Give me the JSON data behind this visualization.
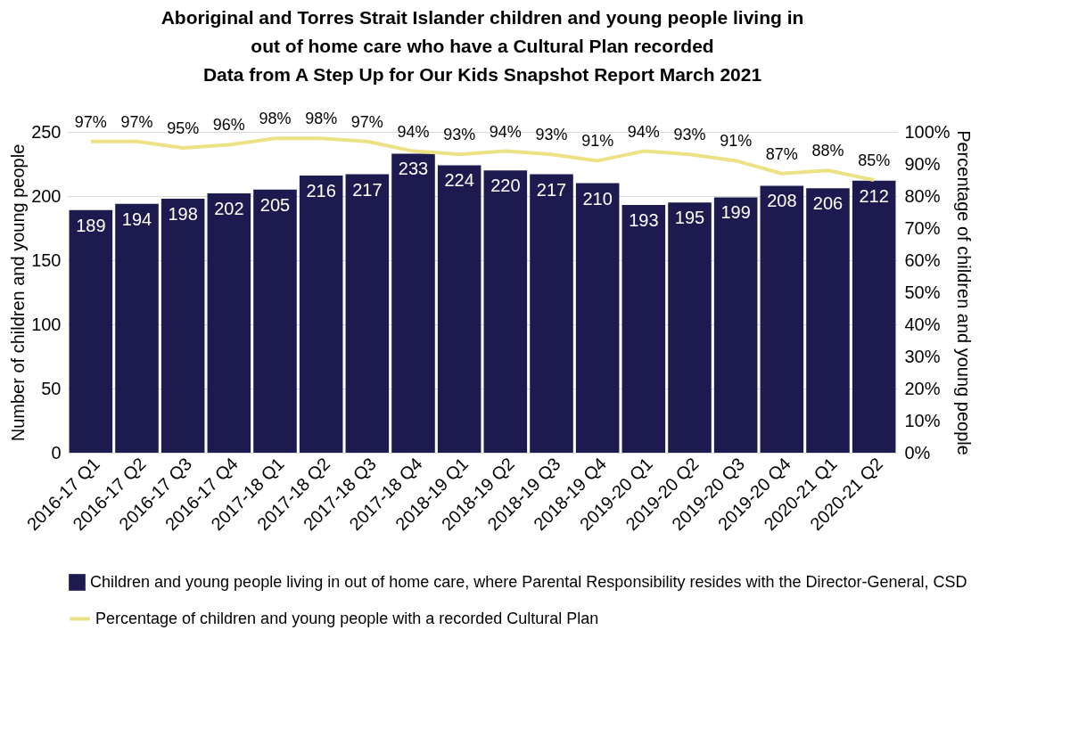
{
  "chart_data": {
    "type": "bar",
    "title": "Aboriginal and Torres Strait Islander children and young people living in out of home care who have a Cultural Plan recorded",
    "subtitle": "Data from A Step Up for Our Kids Snapshot Report March 2021",
    "ylabel": "Number of children and young people",
    "y2label": "Percentage of children and young people",
    "categories": [
      "2016-17 Q1",
      "2016-17 Q2",
      "2016-17 Q3",
      "2016-17 Q4",
      "2017-18 Q1",
      "2017-18 Q2",
      "2017-18 Q3",
      "2017-18 Q4",
      "2018-19 Q1",
      "2018-19 Q2",
      "2018-19 Q3",
      "2018-19 Q4",
      "2019-20 Q1",
      "2019-20 Q2",
      "2019-20 Q3",
      "2019-20 Q4",
      "2020-21 Q1",
      "2020-21 Q2"
    ],
    "series": [
      {
        "name": "Children and young people living in out of home care, where Parental Responsibility resides with the Director-General, CSD",
        "color": "#1c1a4e",
        "values": [
          189,
          194,
          198,
          202,
          205,
          216,
          217,
          233,
          224,
          220,
          217,
          210,
          193,
          195,
          199,
          208,
          206,
          212
        ],
        "value_labels": [
          "189",
          "194",
          "198",
          "202",
          "205",
          "216",
          "217",
          "233",
          "224",
          "220",
          "217",
          "210",
          "193",
          "195",
          "199",
          "208",
          "206",
          "212"
        ]
      },
      {
        "name": "Percentage of children and young people with a recorded Cultural Plan",
        "type": "line",
        "axis": "y2",
        "color": "#ece184",
        "values": [
          97,
          97,
          95,
          96,
          98,
          98,
          97,
          94,
          93,
          94,
          93,
          91,
          94,
          93,
          91,
          87,
          88,
          85
        ],
        "value_labels": [
          "97%",
          "97%",
          "95%",
          "96%",
          "98%",
          "98%",
          "97%",
          "94%",
          "93%",
          "94%",
          "93%",
          "91%",
          "94%",
          "93%",
          "91%",
          "87%",
          "88%",
          "85%"
        ]
      }
    ],
    "ylim": [
      0,
      250
    ],
    "yticks": [
      0,
      50,
      100,
      150,
      200,
      250
    ],
    "y2lim": [
      0,
      100
    ],
    "y2ticks": [
      {
        "value": 0,
        "label": "0%"
      },
      {
        "value": 10,
        "label": "10%"
      },
      {
        "value": 20,
        "label": "20%"
      },
      {
        "value": 30,
        "label": "30%"
      },
      {
        "value": 40,
        "label": "40%"
      },
      {
        "value": 50,
        "label": "50%"
      },
      {
        "value": 60,
        "label": "60%"
      },
      {
        "value": 70,
        "label": "70%"
      },
      {
        "value": 80,
        "label": "80%"
      },
      {
        "value": 90,
        "label": "90%"
      },
      {
        "value": 100,
        "label": "100%"
      }
    ],
    "grid": "y",
    "legend": "bottom",
    "marker": "none",
    "line_style": "solid"
  }
}
